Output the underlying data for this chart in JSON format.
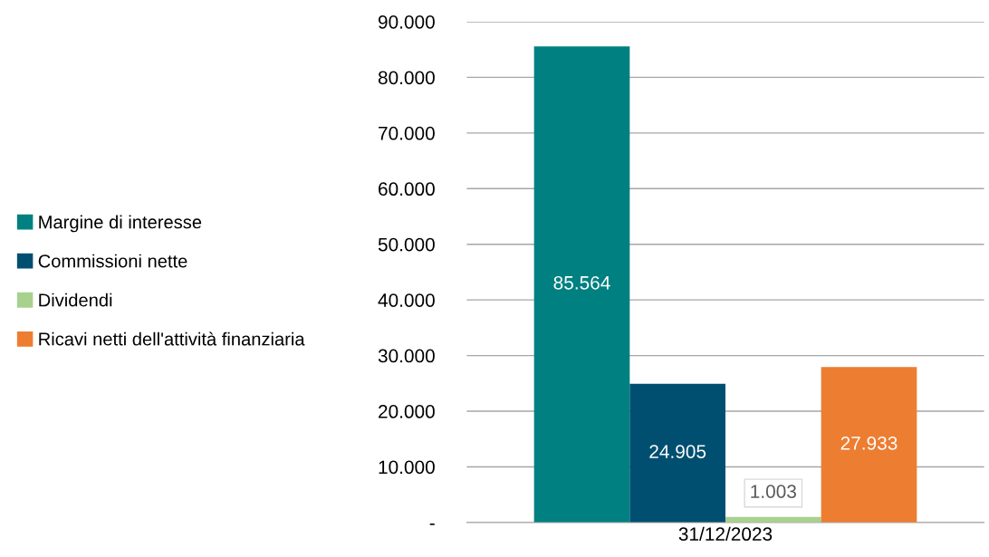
{
  "chart_data": {
    "type": "bar",
    "categories": [
      "31/12/2023"
    ],
    "series": [
      {
        "name": "Margine di interesse",
        "color": "#008080",
        "values": [
          85564
        ],
        "value_labels": [
          "85.564"
        ]
      },
      {
        "name": "Commissioni nette",
        "color": "#004f70",
        "values": [
          24905
        ],
        "value_labels": [
          "24.905"
        ]
      },
      {
        "name": "Dividendi",
        "color": "#a9d18e",
        "values": [
          1003
        ],
        "value_labels": [
          "1.003"
        ]
      },
      {
        "name": "Ricavi netti dell'attività finanziaria",
        "color": "#ed7d31",
        "values": [
          27933
        ],
        "value_labels": [
          "27.933"
        ]
      }
    ],
    "ylim": [
      0,
      90000
    ],
    "yticks": [
      {
        "value": 0,
        "label": "-"
      },
      {
        "value": 10000,
        "label": "10.000"
      },
      {
        "value": 20000,
        "label": "20.000"
      },
      {
        "value": 30000,
        "label": "30.000"
      },
      {
        "value": 40000,
        "label": "40.000"
      },
      {
        "value": 50000,
        "label": "50.000"
      },
      {
        "value": 60000,
        "label": "60.000"
      },
      {
        "value": 70000,
        "label": "70.000"
      },
      {
        "value": 80000,
        "label": "80.000"
      },
      {
        "value": 90000,
        "label": "90.000"
      }
    ],
    "grid": "y",
    "legend": "left"
  }
}
